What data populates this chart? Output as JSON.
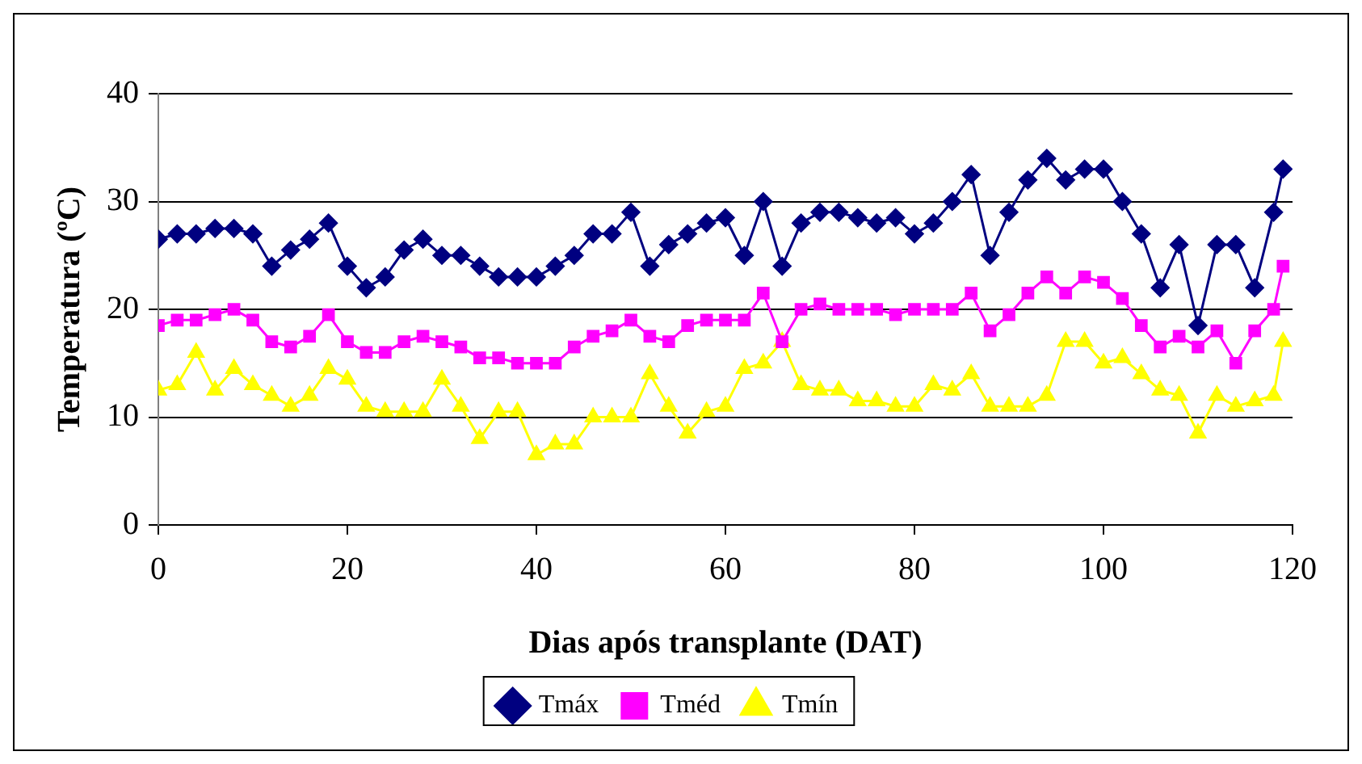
{
  "chart_data": {
    "type": "line",
    "xlabel": "Dias após transplante (DAT)",
    "ylabel": "Temperatura (ºC)",
    "x": [
      0,
      2,
      4,
      6,
      8,
      10,
      12,
      14,
      16,
      18,
      20,
      22,
      24,
      26,
      28,
      30,
      32,
      34,
      36,
      38,
      40,
      42,
      44,
      46,
      48,
      50,
      52,
      54,
      56,
      58,
      60,
      62,
      64,
      66,
      68,
      70,
      72,
      74,
      76,
      78,
      80,
      82,
      84,
      86,
      88,
      90,
      92,
      94,
      96,
      98,
      100,
      102,
      104,
      106,
      108,
      110,
      112,
      114,
      116,
      118,
      119
    ],
    "series": [
      {
        "name": "Tmáx",
        "color": "#000080",
        "marker": "diamond",
        "values": [
          26.5,
          27,
          27,
          27.5,
          27.5,
          27,
          24,
          25.5,
          26.5,
          28,
          24,
          22,
          23,
          25.5,
          26.5,
          25,
          25,
          24,
          23,
          23,
          23,
          24,
          25,
          27,
          27,
          29,
          24,
          26,
          27,
          28,
          28.5,
          25,
          30,
          24,
          28,
          29,
          29,
          28.5,
          28,
          28.5,
          27,
          28,
          30,
          32.5,
          25,
          29,
          32,
          34,
          32,
          33,
          33,
          30,
          27,
          22,
          26,
          18.5,
          26,
          26,
          22,
          29,
          33
        ]
      },
      {
        "name": "Tméd",
        "color": "#ff00ff",
        "marker": "square",
        "values": [
          18.5,
          19,
          19,
          19.5,
          20,
          19,
          17,
          16.5,
          17.5,
          19.5,
          17,
          16,
          16,
          17,
          17.5,
          17,
          16.5,
          15.5,
          15.5,
          15,
          15,
          15,
          16.5,
          17.5,
          18,
          19,
          17.5,
          17,
          18.5,
          19,
          19,
          19,
          21.5,
          17,
          20,
          20.5,
          20,
          20,
          20,
          19.5,
          20,
          20,
          20,
          21.5,
          18,
          19.5,
          21.5,
          23,
          21.5,
          23,
          22.5,
          21,
          18.5,
          16.5,
          17.5,
          16.5,
          18,
          15,
          18,
          20,
          24
        ]
      },
      {
        "name": "Tmín",
        "color": "#ffff00",
        "marker": "triangle",
        "values": [
          12.5,
          13,
          16,
          12.5,
          14.5,
          13,
          12,
          11,
          12,
          14.5,
          13.5,
          11,
          10.5,
          10.5,
          10.5,
          13.5,
          11,
          8,
          10.5,
          10.5,
          6.5,
          7.5,
          7.5,
          10,
          10,
          10,
          14,
          11,
          8.5,
          10.5,
          11,
          14.5,
          15,
          17,
          13,
          12.5,
          12.5,
          11.5,
          11.5,
          11,
          11,
          13,
          12.5,
          14,
          11,
          11,
          11,
          12,
          17,
          17,
          15,
          15.5,
          14,
          12.5,
          12,
          8.5,
          12,
          11,
          11.5,
          12,
          17
        ]
      }
    ],
    "xlim": [
      0,
      120
    ],
    "xticks": [
      0,
      20,
      40,
      60,
      80,
      100,
      120
    ],
    "ylim": [
      0,
      40
    ],
    "yticks": [
      0,
      10,
      20,
      30,
      40
    ],
    "grid": "y",
    "legend": "bottom",
    "line_style": "solid"
  }
}
